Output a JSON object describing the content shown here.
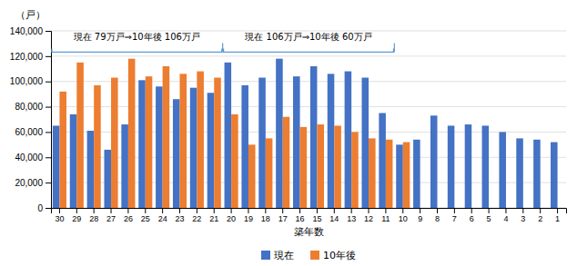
{
  "chart_data": {
    "type": "bar",
    "xlabel": "築年数",
    "ylabel": "（戸）",
    "categories": [
      30,
      29,
      28,
      27,
      26,
      25,
      24,
      23,
      22,
      21,
      20,
      19,
      18,
      17,
      16,
      15,
      14,
      13,
      12,
      11,
      10,
      9,
      8,
      7,
      6,
      5,
      4,
      3,
      2,
      1
    ],
    "series": [
      {
        "name": "現在",
        "color": "#4472C4",
        "values": [
          65000,
          74000,
          61000,
          46000,
          66000,
          101000,
          96000,
          86000,
          95000,
          91000,
          115000,
          97000,
          103000,
          118000,
          104000,
          112000,
          106000,
          108000,
          103000,
          75000,
          50000,
          54000,
          73000,
          65000,
          66000,
          65000,
          60000,
          55000,
          54000,
          52000
        ]
      },
      {
        "name": "10年後",
        "color": "#ED7D31",
        "values": [
          92000,
          115000,
          97000,
          103000,
          118000,
          104000,
          112000,
          106000,
          108000,
          103000,
          74000,
          50000,
          55000,
          72000,
          64000,
          66000,
          65000,
          60000,
          55000,
          54000,
          52000,
          0,
          0,
          0,
          0,
          0,
          0,
          0,
          0,
          0
        ]
      }
    ],
    "ylim": [
      0,
      140000
    ],
    "yticks": [
      0,
      {
        "value": 20000,
        "label": "20,000"
      },
      {
        "value": 40000,
        "label": "40,000"
      },
      {
        "value": 60000,
        "label": "60,000"
      },
      {
        "value": 80000,
        "label": "80,000"
      },
      {
        "value": 100000,
        "label": "100,000"
      },
      {
        "value": 120000,
        "label": "120,000"
      },
      {
        "value": 140000,
        "label": "140,000"
      }
    ],
    "grid": true,
    "legend": "bottom",
    "annotations": [
      "現在 79万戸⇒10年後 106万戸",
      "現在 106万戸⇒10年後 60万戸"
    ]
  }
}
